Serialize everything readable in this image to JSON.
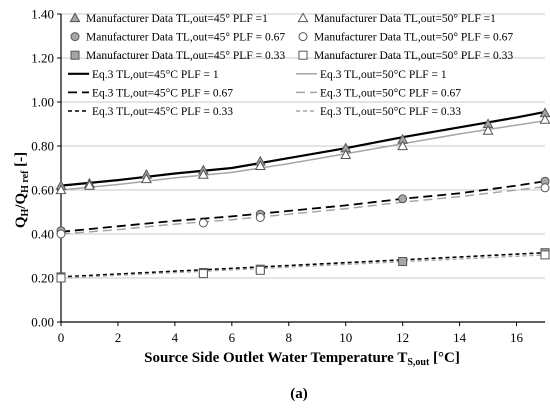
{
  "chart_data": {
    "type": "line",
    "xlabel": "Source Side Outlet Water Temperature T",
    "xlabel_sub": "S,out",
    "xlabel_unit": " [°C]",
    "ylabel": "Q",
    "ylabel_sub1": "H",
    "ylabel_mid": "/Q",
    "ylabel_sub2": "H ref",
    "ylabel_unit": " [-]",
    "caption": "(a)",
    "xlim": [
      0,
      17
    ],
    "ylim": [
      0,
      1.4
    ],
    "xticks": [
      0,
      2,
      4,
      6,
      8,
      10,
      12,
      14,
      16
    ],
    "xtick_labels": [
      "0",
      "2",
      "4",
      "6",
      "8",
      "10",
      "12",
      "14",
      "16"
    ],
    "yticks": [
      0,
      0.2,
      0.4,
      0.6,
      0.8,
      1.0,
      1.2,
      1.4
    ],
    "ytick_labels": [
      "0.00",
      "0.20",
      "0.40",
      "0.60",
      "0.80",
      "1.00",
      "1.20",
      "1.40"
    ],
    "grid": "horizontal",
    "legend_position": "top, inside, two columns",
    "marker_series": [
      {
        "name": "Manufacturer Data TL,out=45° PLF =1",
        "marker": "triangle",
        "fill": "#a6a6a6",
        "x": [
          0,
          1,
          3,
          5,
          7,
          10,
          12,
          15,
          17
        ],
        "y": [
          0.62,
          0.63,
          0.67,
          0.69,
          0.73,
          0.79,
          0.83,
          0.9,
          0.95
        ]
      },
      {
        "name": "Manufacturer Data TL,out=50° PLF =1",
        "marker": "triangle",
        "fill": "#ffffff",
        "x": [
          0,
          1,
          3,
          5,
          7,
          10,
          12,
          15,
          17
        ],
        "y": [
          0.6,
          0.62,
          0.65,
          0.67,
          0.71,
          0.76,
          0.8,
          0.87,
          0.92
        ]
      },
      {
        "name": "Manufacturer Data TL,out=45° PLF = 0.67",
        "marker": "circle",
        "fill": "#a6a6a6",
        "x": [
          0,
          7,
          12,
          17
        ],
        "y": [
          0.415,
          0.49,
          0.56,
          0.64
        ]
      },
      {
        "name": "Manufacturer Data TL,out=50° PLF = 0.67",
        "marker": "circle",
        "fill": "#ffffff",
        "x": [
          0,
          5,
          7,
          17
        ],
        "y": [
          0.4,
          0.45,
          0.475,
          0.61
        ]
      },
      {
        "name": "Manufacturer Data TL,out=45° PLF = 0.33",
        "marker": "square",
        "fill": "#a6a6a6",
        "x": [
          0,
          5,
          7,
          12,
          17
        ],
        "y": [
          0.205,
          0.225,
          0.24,
          0.275,
          0.315
        ]
      },
      {
        "name": "Manufacturer Data TL,out=50° PLF = 0.33",
        "marker": "square",
        "fill": "#ffffff",
        "x": [
          0,
          5,
          7,
          17
        ],
        "y": [
          0.2,
          0.22,
          0.235,
          0.305
        ]
      }
    ],
    "line_series": [
      {
        "name": "Eq.3 TL,out=45°C PLF = 1",
        "color": "#000000",
        "width": 2.2,
        "dash": "",
        "x": [
          0,
          2,
          4,
          6,
          8,
          10,
          12,
          14,
          16,
          17
        ],
        "y": [
          0.62,
          0.645,
          0.675,
          0.7,
          0.745,
          0.79,
          0.84,
          0.885,
          0.93,
          0.955
        ]
      },
      {
        "name": "Eq.3 TL,out=50°C PLF = 1",
        "color": "#a6a6a6",
        "width": 1.5,
        "dash": "",
        "x": [
          0,
          2,
          4,
          6,
          8,
          10,
          12,
          14,
          16,
          17
        ],
        "y": [
          0.6,
          0.625,
          0.655,
          0.68,
          0.72,
          0.765,
          0.81,
          0.855,
          0.895,
          0.915
        ]
      },
      {
        "name": "Eq.3 TL,out=45°C PLF = 0.67",
        "color": "#000000",
        "width": 1.8,
        "dash": "9,5",
        "x": [
          0,
          2,
          4,
          6,
          8,
          10,
          12,
          14,
          16,
          17
        ],
        "y": [
          0.41,
          0.435,
          0.46,
          0.48,
          0.505,
          0.53,
          0.56,
          0.585,
          0.62,
          0.64
        ]
      },
      {
        "name": "Eq.3 TL,out=50°C PLF = 0.67",
        "color": "#a6a6a6",
        "width": 1.5,
        "dash": "9,5",
        "x": [
          0,
          2,
          4,
          6,
          8,
          10,
          12,
          14,
          16,
          17
        ],
        "y": [
          0.4,
          0.42,
          0.445,
          0.465,
          0.49,
          0.515,
          0.545,
          0.57,
          0.6,
          0.615
        ]
      },
      {
        "name": "Eq.3 TL,out=45°C PLF = 0.33",
        "color": "#000000",
        "width": 1.6,
        "dash": "4,3",
        "x": [
          0,
          17
        ],
        "y": [
          0.205,
          0.315
        ]
      },
      {
        "name": "Eq.3 TL,out=50°C PLF = 0.33",
        "color": "#a6a6a6",
        "width": 1.4,
        "dash": "4,3",
        "x": [
          0,
          17
        ],
        "y": [
          0.2,
          0.305
        ]
      }
    ]
  }
}
